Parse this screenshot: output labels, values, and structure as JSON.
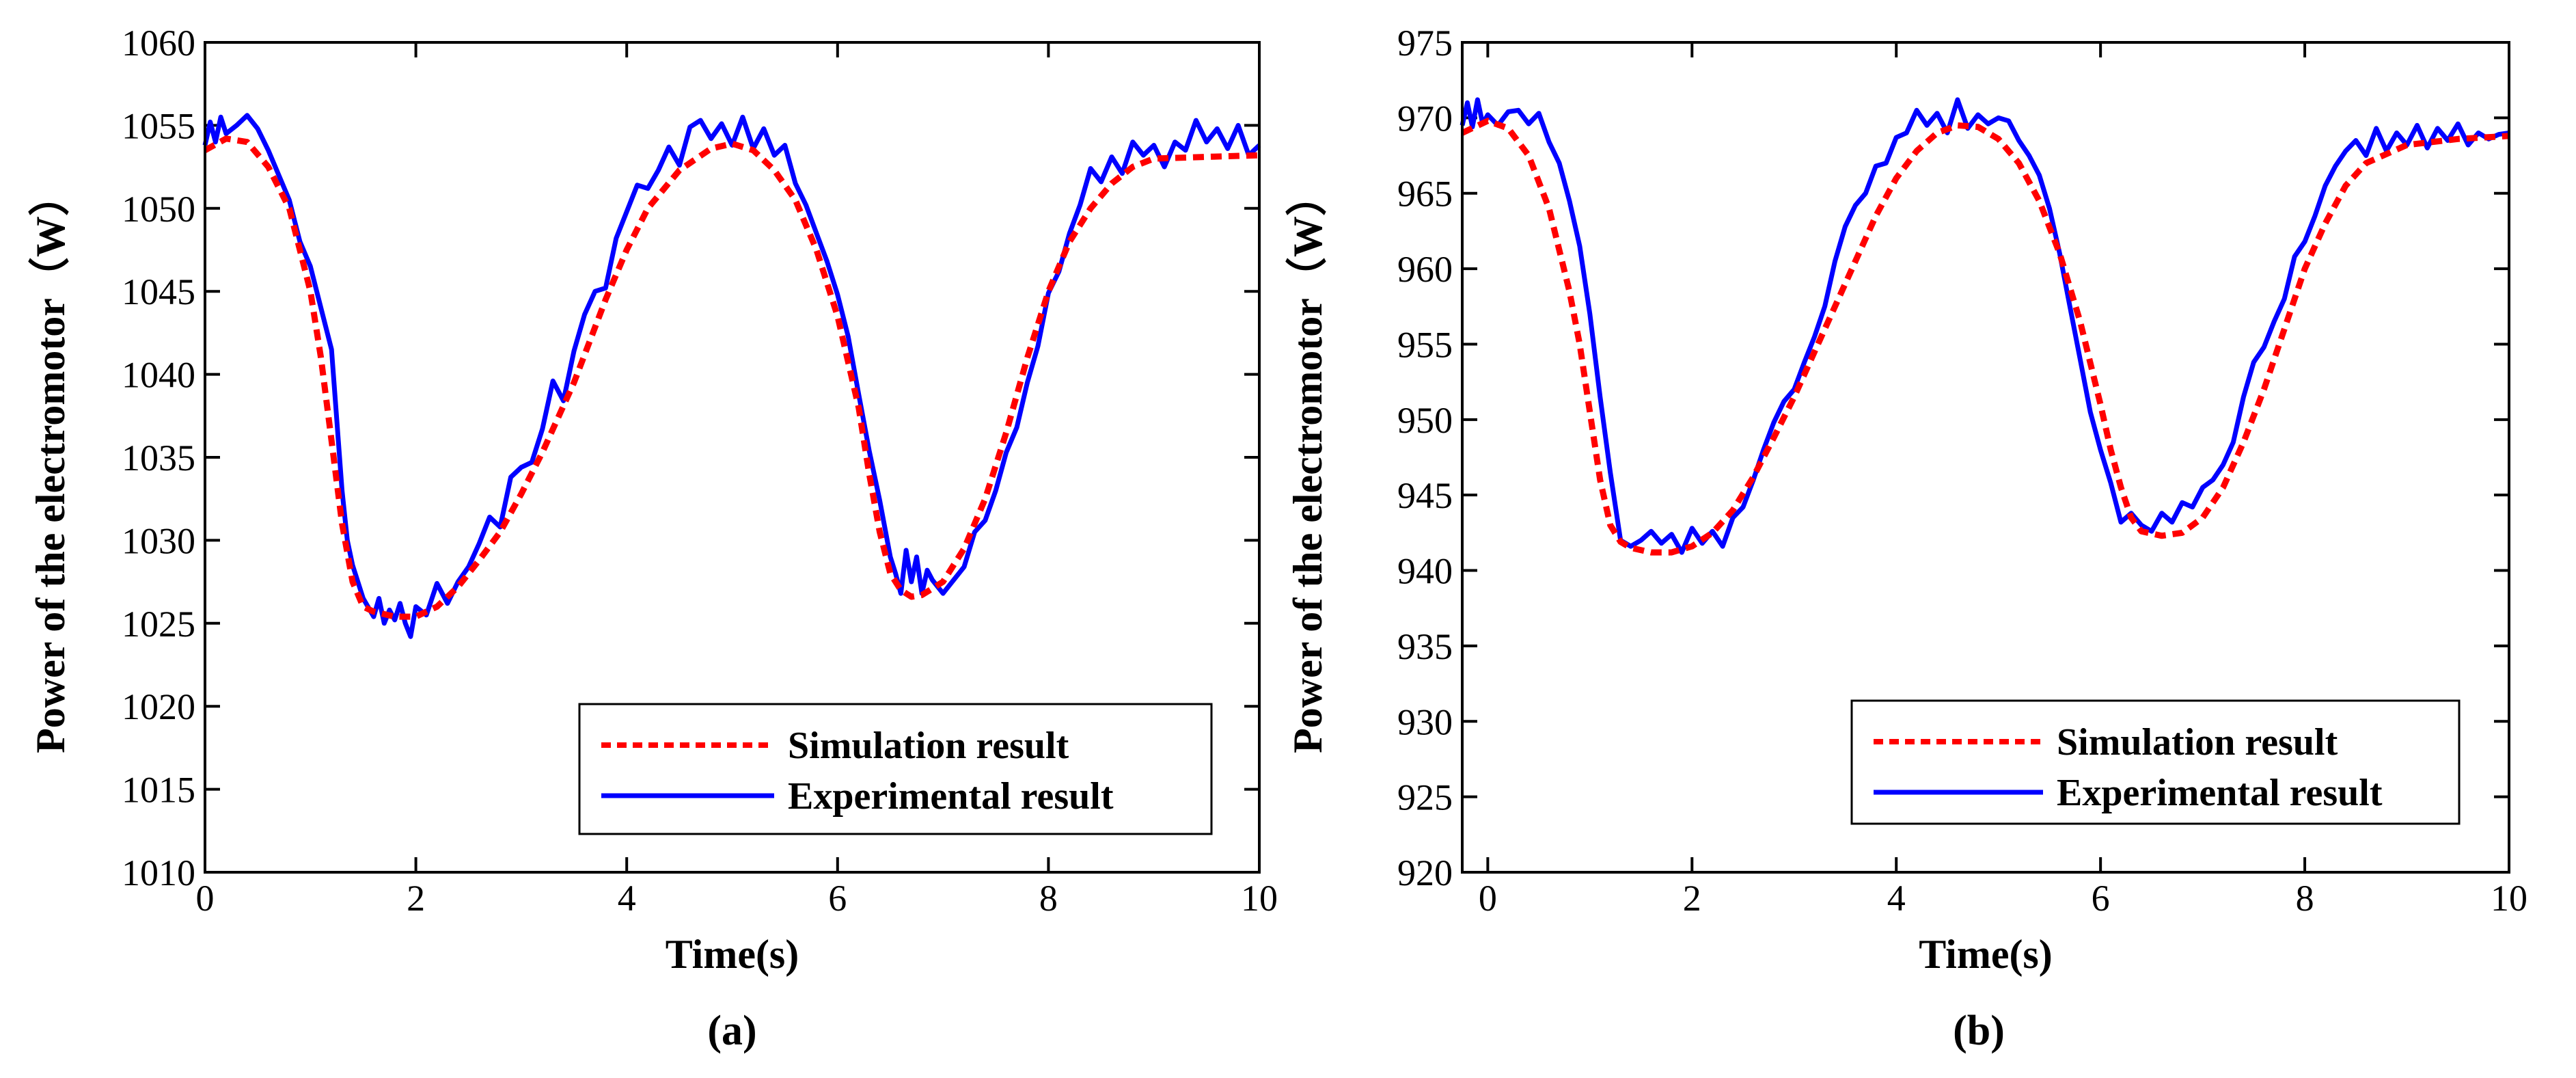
{
  "chart_data": [
    {
      "id": "a",
      "type": "line",
      "caption": "(a)",
      "xlabel": "Time(s)",
      "ylabel": "Power of the electromotor（W）",
      "xlim": [
        0,
        10
      ],
      "ylim": [
        1010,
        1060
      ],
      "xticks": [
        0,
        2,
        4,
        6,
        8,
        10
      ],
      "yticks": [
        1010,
        1015,
        1020,
        1025,
        1030,
        1035,
        1040,
        1045,
        1050,
        1055,
        1060
      ],
      "legend_position": "bottom-right",
      "series": [
        {
          "name": "Simulation result",
          "style": "dashed",
          "color": "#ff0000",
          "x": [
            0,
            0.2,
            0.4,
            0.6,
            0.8,
            1.0,
            1.1,
            1.2,
            1.3,
            1.4,
            1.5,
            1.6,
            1.8,
            2.0,
            2.2,
            2.4,
            2.6,
            2.8,
            3.0,
            3.2,
            3.5,
            3.8,
            4.0,
            4.2,
            4.5,
            4.8,
            5.0,
            5.2,
            5.4,
            5.6,
            5.8,
            6.0,
            6.2,
            6.3,
            6.4,
            6.5,
            6.6,
            6.7,
            6.8,
            7.0,
            7.2,
            7.4,
            7.6,
            7.8,
            8.0,
            8.2,
            8.4,
            8.6,
            8.8,
            9.0,
            9.5,
            10.0
          ],
          "y": [
            1053.5,
            1054.2,
            1054.0,
            1052.5,
            1050.0,
            1045.0,
            1041.0,
            1036.0,
            1031.0,
            1027.5,
            1026.0,
            1025.7,
            1025.4,
            1025.4,
            1026.0,
            1027.2,
            1028.8,
            1030.5,
            1032.8,
            1035.3,
            1039.5,
            1044.5,
            1047.5,
            1050.0,
            1052.3,
            1053.6,
            1053.9,
            1053.5,
            1052.3,
            1050.5,
            1047.5,
            1043.5,
            1038.0,
            1034.0,
            1030.5,
            1028.0,
            1027.0,
            1026.6,
            1026.7,
            1027.5,
            1029.5,
            1032.5,
            1036.5,
            1041.0,
            1045.0,
            1048.0,
            1050.0,
            1051.5,
            1052.5,
            1053.0,
            1053.1,
            1053.2
          ]
        },
        {
          "name": "Experimental result",
          "style": "solid",
          "color": "#0000ff",
          "x": [
            0,
            0.05,
            0.1,
            0.15,
            0.2,
            0.3,
            0.4,
            0.5,
            0.6,
            0.7,
            0.8,
            0.9,
            1.0,
            1.1,
            1.2,
            1.3,
            1.35,
            1.4,
            1.5,
            1.6,
            1.65,
            1.7,
            1.75,
            1.8,
            1.85,
            1.9,
            1.95,
            2.0,
            2.1,
            2.2,
            2.3,
            2.4,
            2.5,
            2.6,
            2.7,
            2.8,
            2.9,
            3.0,
            3.1,
            3.2,
            3.3,
            3.4,
            3.5,
            3.6,
            3.7,
            3.8,
            3.9,
            4.0,
            4.1,
            4.2,
            4.3,
            4.4,
            4.5,
            4.6,
            4.7,
            4.8,
            4.9,
            5.0,
            5.1,
            5.2,
            5.3,
            5.4,
            5.5,
            5.6,
            5.7,
            5.8,
            5.9,
            6.0,
            6.1,
            6.2,
            6.3,
            6.4,
            6.5,
            6.55,
            6.6,
            6.65,
            6.7,
            6.75,
            6.8,
            6.85,
            6.9,
            7.0,
            7.1,
            7.2,
            7.3,
            7.4,
            7.5,
            7.6,
            7.7,
            7.8,
            7.9,
            8.0,
            8.1,
            8.2,
            8.3,
            8.4,
            8.5,
            8.6,
            8.7,
            8.8,
            8.9,
            9.0,
            9.1,
            9.2,
            9.3,
            9.4,
            9.5,
            9.6,
            9.7,
            9.8,
            9.9,
            10.0
          ],
          "y": [
            1053.8,
            1055.2,
            1054.0,
            1055.5,
            1054.5,
            1055.0,
            1055.6,
            1054.8,
            1053.5,
            1052.0,
            1050.5,
            1048.0,
            1046.5,
            1044.0,
            1041.5,
            1033.0,
            1030.0,
            1028.5,
            1026.5,
            1025.4,
            1026.5,
            1025.0,
            1025.8,
            1025.2,
            1026.2,
            1025.0,
            1024.2,
            1026.0,
            1025.5,
            1027.4,
            1026.2,
            1027.5,
            1028.4,
            1029.8,
            1031.4,
            1030.8,
            1033.8,
            1034.4,
            1034.7,
            1036.7,
            1039.6,
            1038.4,
            1041.4,
            1043.6,
            1045.0,
            1045.2,
            1048.2,
            1049.8,
            1051.4,
            1051.2,
            1052.3,
            1053.7,
            1052.6,
            1054.9,
            1055.3,
            1054.2,
            1055.1,
            1053.8,
            1055.5,
            1053.6,
            1054.8,
            1053.2,
            1053.8,
            1051.5,
            1050.2,
            1048.5,
            1046.8,
            1044.8,
            1042.3,
            1038.8,
            1035.4,
            1032.4,
            1029.0,
            1028.0,
            1026.8,
            1029.4,
            1027.5,
            1029.0,
            1026.8,
            1028.2,
            1027.6,
            1026.8,
            1027.6,
            1028.4,
            1030.5,
            1031.2,
            1033.0,
            1035.3,
            1036.8,
            1039.5,
            1041.7,
            1044.9,
            1046.2,
            1048.5,
            1050.2,
            1052.4,
            1051.6,
            1053.1,
            1052.1,
            1054.0,
            1053.2,
            1053.8,
            1052.5,
            1054.0,
            1053.5,
            1055.3,
            1054.0,
            1054.8,
            1053.6,
            1055.0,
            1053.2,
            1053.8
          ]
        }
      ]
    },
    {
      "id": "b",
      "type": "line",
      "caption": "(b)",
      "xlabel": "Time(s)",
      "ylabel": "Power of the electromotor（W）",
      "xlim": [
        -0.25,
        10
      ],
      "ylim": [
        920,
        975
      ],
      "xticks": [
        0,
        2,
        4,
        6,
        8,
        10
      ],
      "yticks": [
        920,
        925,
        930,
        935,
        940,
        945,
        950,
        955,
        960,
        965,
        970,
        975
      ],
      "legend_position": "bottom-right",
      "series": [
        {
          "name": "Simulation result",
          "style": "dashed",
          "color": "#ff0000",
          "x": [
            -0.25,
            0,
            0.2,
            0.4,
            0.6,
            0.8,
            0.9,
            1.0,
            1.1,
            1.2,
            1.3,
            1.4,
            1.6,
            1.8,
            2.0,
            2.2,
            2.4,
            2.6,
            2.8,
            3.0,
            3.2,
            3.4,
            3.6,
            3.8,
            4.0,
            4.2,
            4.4,
            4.6,
            4.8,
            5.0,
            5.2,
            5.4,
            5.6,
            5.8,
            6.0,
            6.1,
            6.2,
            6.3,
            6.4,
            6.6,
            6.8,
            7.0,
            7.2,
            7.4,
            7.6,
            7.8,
            8.0,
            8.2,
            8.4,
            8.6,
            9.0,
            9.5,
            10.0
          ],
          "y": [
            969.0,
            969.8,
            969.3,
            967.5,
            964.0,
            958.5,
            955.0,
            950.5,
            946.0,
            943.0,
            941.9,
            941.5,
            941.2,
            941.2,
            941.6,
            942.5,
            944.0,
            946.2,
            948.8,
            951.5,
            954.5,
            957.5,
            960.5,
            963.5,
            966.0,
            967.8,
            969.0,
            969.5,
            969.4,
            968.6,
            967.0,
            964.5,
            961.0,
            956.5,
            951.0,
            948.0,
            945.5,
            943.5,
            942.6,
            942.3,
            942.5,
            943.5,
            945.5,
            948.5,
            952.0,
            956.0,
            960.0,
            963.0,
            965.5,
            967.0,
            968.2,
            968.6,
            968.8
          ]
        },
        {
          "name": "Experimental result",
          "style": "solid",
          "color": "#0000ff",
          "x": [
            -0.25,
            -0.2,
            -0.15,
            -0.1,
            -0.05,
            0,
            0.1,
            0.2,
            0.3,
            0.4,
            0.5,
            0.6,
            0.7,
            0.8,
            0.9,
            1.0,
            1.1,
            1.2,
            1.3,
            1.4,
            1.5,
            1.6,
            1.7,
            1.8,
            1.9,
            2.0,
            2.1,
            2.2,
            2.3,
            2.4,
            2.5,
            2.6,
            2.7,
            2.8,
            2.9,
            3.0,
            3.1,
            3.2,
            3.3,
            3.4,
            3.5,
            3.6,
            3.7,
            3.8,
            3.9,
            4.0,
            4.1,
            4.2,
            4.3,
            4.4,
            4.5,
            4.6,
            4.7,
            4.8,
            4.9,
            5.0,
            5.1,
            5.2,
            5.3,
            5.4,
            5.5,
            5.6,
            5.7,
            5.8,
            5.9,
            6.0,
            6.1,
            6.2,
            6.3,
            6.4,
            6.5,
            6.6,
            6.7,
            6.8,
            6.9,
            7.0,
            7.1,
            7.2,
            7.3,
            7.4,
            7.5,
            7.6,
            7.7,
            7.8,
            7.9,
            8.0,
            8.1,
            8.2,
            8.3,
            8.4,
            8.5,
            8.6,
            8.7,
            8.8,
            8.9,
            9.0,
            9.1,
            9.2,
            9.3,
            9.4,
            9.5,
            9.6,
            9.7,
            9.8,
            9.9,
            10.0
          ],
          "y": [
            969.5,
            971.0,
            969.4,
            971.2,
            969.6,
            970.2,
            969.5,
            970.4,
            970.5,
            969.6,
            970.3,
            968.4,
            967.0,
            964.5,
            961.5,
            957.0,
            951.5,
            946.5,
            942.0,
            941.6,
            942.0,
            942.6,
            941.8,
            942.4,
            941.2,
            942.8,
            941.8,
            942.6,
            941.6,
            943.5,
            944.2,
            946.0,
            948.0,
            949.8,
            951.2,
            952.0,
            953.8,
            955.5,
            957.5,
            960.5,
            962.8,
            964.2,
            965.0,
            966.8,
            967.0,
            968.7,
            969.0,
            970.5,
            969.5,
            970.3,
            969.0,
            971.2,
            969.3,
            970.2,
            969.6,
            970.0,
            969.8,
            968.5,
            967.5,
            966.2,
            964.0,
            961.0,
            957.5,
            954.0,
            950.5,
            948.0,
            945.8,
            943.2,
            943.8,
            943.0,
            942.6,
            943.8,
            943.2,
            944.5,
            944.2,
            945.5,
            946.0,
            947.0,
            948.5,
            951.5,
            953.8,
            954.8,
            956.5,
            958.0,
            960.8,
            961.8,
            963.5,
            965.5,
            966.8,
            967.8,
            968.5,
            967.5,
            969.3,
            967.8,
            969.0,
            968.2,
            969.5,
            968.0,
            969.3,
            968.5,
            969.6,
            968.2,
            969.0,
            968.6,
            968.9,
            969.0
          ]
        }
      ]
    }
  ]
}
